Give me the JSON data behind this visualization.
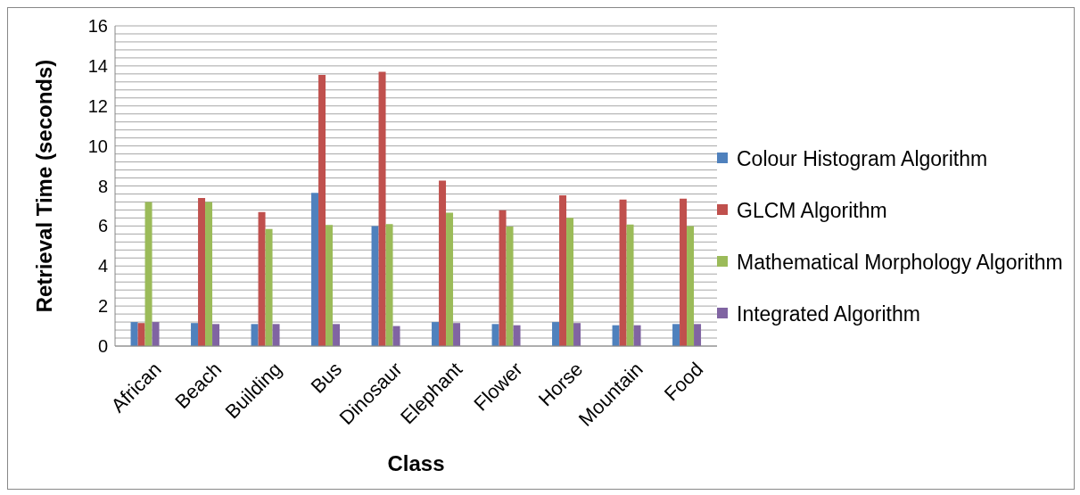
{
  "chart_data": {
    "type": "bar",
    "xlabel": "Class",
    "ylabel": "Retrieval Time (seconds)",
    "categories": [
      "African",
      "Beach",
      "Building",
      "Bus",
      "Dinosaur",
      "Elephant",
      "Flower",
      "Horse",
      "Mountain",
      "Food"
    ],
    "series": [
      {
        "name": "Colour Histogram Algorithm",
        "color": "#4f81bd",
        "values": [
          1.2,
          1.15,
          1.1,
          7.65,
          6.0,
          1.2,
          1.1,
          1.2,
          1.04,
          1.1
        ]
      },
      {
        "name": "GLCM Algorithm",
        "color": "#c0504d",
        "values": [
          1.15,
          7.4,
          6.7,
          13.55,
          13.7,
          8.27,
          6.78,
          7.53,
          7.32,
          7.37
        ]
      },
      {
        "name": "Mathematical Morphology Algorithm",
        "color": "#9bbb59",
        "values": [
          7.2,
          7.2,
          5.85,
          6.05,
          6.1,
          6.66,
          5.97,
          6.41,
          6.07,
          6.0
        ]
      },
      {
        "name": "Integrated Algorithm",
        "color": "#8064a2",
        "values": [
          1.2,
          1.1,
          1.1,
          1.1,
          1.0,
          1.15,
          1.04,
          1.15,
          1.04,
          1.1
        ]
      }
    ],
    "ylim": [
      0,
      16
    ],
    "yticks": [
      0,
      {
        "value": 0.4,
        "label": null
      },
      {
        "value": 0.8,
        "label": null
      },
      {
        "value": 1.2,
        "label": null
      },
      {
        "value": 1.6,
        "label": null
      },
      2,
      {
        "value": 2.4,
        "label": null
      },
      {
        "value": 2.8,
        "label": null
      },
      {
        "value": 3.2,
        "label": null
      },
      {
        "value": 3.6,
        "label": null
      },
      4,
      {
        "value": 4.4,
        "label": null
      },
      {
        "value": 4.8,
        "label": null
      },
      {
        "value": 5.2,
        "label": null
      },
      {
        "value": 5.6,
        "label": null
      },
      6,
      {
        "value": 6.4,
        "label": null
      },
      {
        "value": 6.8,
        "label": null
      },
      {
        "value": 7.2,
        "label": null
      },
      {
        "value": 7.6,
        "label": null
      },
      8,
      {
        "value": 8.4,
        "label": null
      },
      {
        "value": 8.8,
        "label": null
      },
      {
        "value": 9.2,
        "label": null
      },
      {
        "value": 9.6,
        "label": null
      },
      10,
      {
        "value": 10.4,
        "label": null
      },
      {
        "value": 10.8,
        "label": null
      },
      {
        "value": 11.2,
        "label": null
      },
      {
        "value": 11.6,
        "label": null
      },
      12,
      {
        "value": 12.4,
        "label": null
      },
      {
        "value": 12.8,
        "label": null
      },
      {
        "value": 13.2,
        "label": null
      },
      {
        "value": 13.6,
        "label": null
      },
      14,
      {
        "value": 14.4,
        "label": null
      },
      {
        "value": 14.8,
        "label": null
      },
      {
        "value": 15.2,
        "label": null
      },
      {
        "value": 15.6,
        "label": null
      },
      16
    ],
    "grid": "y",
    "legend": "right"
  }
}
